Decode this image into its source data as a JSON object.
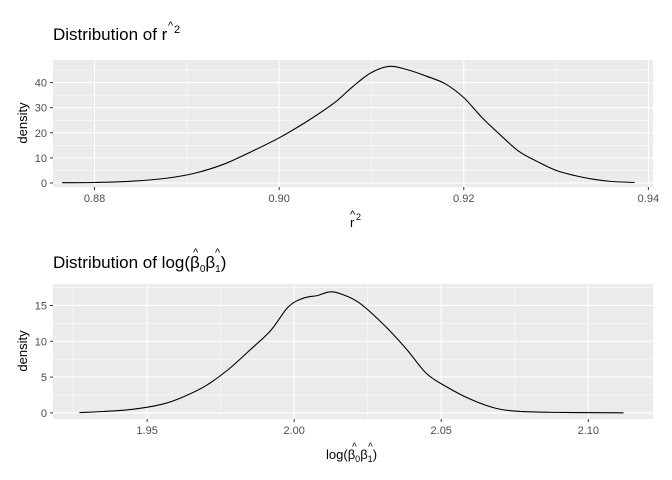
{
  "chart_data": [
    {
      "type": "line",
      "title": "Distribution of r̂²",
      "title_text": "Distribution of ",
      "xlabel_base": "r",
      "hat": "^",
      "superscript": "2",
      "ylabel": "density",
      "xlim": [
        0.8755,
        0.9405
      ],
      "ylim": [
        -1.6,
        49
      ],
      "xticks": [
        0.88,
        0.9,
        0.92,
        0.94
      ],
      "xtick_labels": [
        "0.88",
        "0.90",
        "0.92",
        "0.94"
      ],
      "yticks": [
        0,
        10,
        20,
        30,
        40
      ],
      "ytick_labels": [
        "0",
        "10",
        "20",
        "30",
        "40"
      ],
      "grid": true,
      "series": [
        {
          "x": [
            0.8765,
            0.88,
            0.884,
            0.888,
            0.891,
            0.894,
            0.897,
            0.9,
            0.903,
            0.906,
            0.908,
            0.91,
            0.912,
            0.914,
            0.916,
            0.918,
            0.92,
            0.922,
            0.924,
            0.926,
            0.928,
            0.93,
            0.932,
            0.934,
            0.936,
            0.9385
          ],
          "y": [
            0.1,
            0.2,
            0.7,
            2.0,
            4.0,
            7.5,
            12.5,
            18.0,
            24.5,
            32.0,
            38.5,
            44.0,
            46.5,
            45.0,
            42.5,
            39.5,
            34.0,
            26.0,
            19.0,
            12.5,
            8.5,
            5.0,
            3.0,
            1.5,
            0.6,
            0.2
          ]
        }
      ]
    },
    {
      "type": "line",
      "title": "Distribution of log(β̂₀β̂₁)",
      "title_text": "Distribution of ",
      "log_prefix": "log(",
      "beta": "β",
      "hat": "^",
      "sub0": "0",
      "sub1": "1",
      "close_paren": ")",
      "ylabel": "density",
      "xlim": [
        1.918,
        2.122
      ],
      "ylim": [
        -0.85,
        18
      ],
      "xticks": [
        1.95,
        2.0,
        2.05,
        2.1
      ],
      "xtick_labels": [
        "1.95",
        "2.00",
        "2.05",
        "2.10"
      ],
      "yticks": [
        0,
        5,
        10,
        15
      ],
      "ytick_labels": [
        "0",
        "5",
        "10",
        "15"
      ],
      "grid": true,
      "series": [
        {
          "x": [
            1.927,
            1.935,
            1.945,
            1.955,
            1.962,
            1.97,
            1.978,
            1.985,
            1.992,
            1.998,
            2.003,
            2.008,
            2.012,
            2.016,
            2.022,
            2.03,
            2.038,
            2.045,
            2.052,
            2.06,
            2.068,
            2.075,
            2.085,
            2.095,
            2.112
          ],
          "y": [
            0.05,
            0.2,
            0.5,
            1.2,
            2.2,
            3.8,
            6.2,
            8.8,
            11.5,
            14.8,
            16.0,
            16.4,
            16.9,
            16.6,
            15.4,
            12.5,
            9.0,
            5.5,
            3.6,
            1.9,
            0.7,
            0.25,
            0.1,
            0.05,
            0.02
          ]
        }
      ]
    }
  ]
}
